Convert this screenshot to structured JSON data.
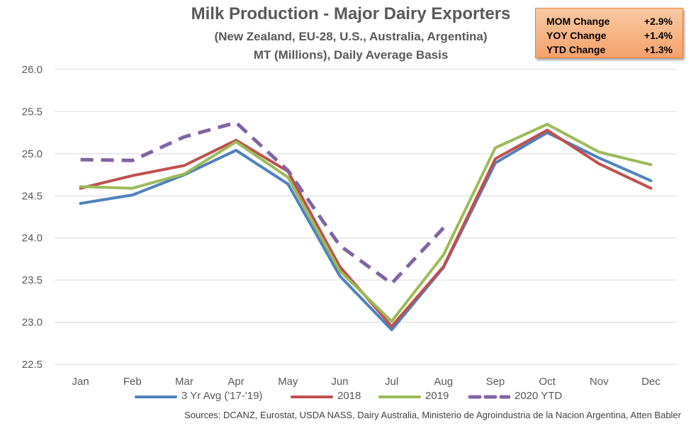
{
  "chart_data": {
    "type": "line",
    "title": "Milk Production - Major Dairy Exporters",
    "subtitle": [
      "(New Zealand, EU-28, U.S., Australia, Argentina)",
      "MT (Millions), Daily Average Basis"
    ],
    "xlabel": "",
    "ylabel": "",
    "categories": [
      "Jan",
      "Feb",
      "Mar",
      "Apr",
      "May",
      "Jun",
      "Jul",
      "Aug",
      "Sep",
      "Oct",
      "Nov",
      "Dec"
    ],
    "ylim": [
      22.5,
      26.0
    ],
    "yticks": [
      "22.5",
      "23.0",
      "23.5",
      "24.0",
      "24.5",
      "25.0",
      "25.5",
      "26.0"
    ],
    "grid": true,
    "legend_position": "bottom",
    "series": [
      {
        "name": "3 Yr Avg ('17-'19)",
        "color": "#4f81bd",
        "dashed": false,
        "values": [
          24.41,
          24.51,
          24.75,
          25.04,
          24.64,
          23.55,
          22.91,
          23.65,
          24.89,
          25.25,
          24.95,
          24.68
        ]
      },
      {
        "name": "2018",
        "color": "#c0504d",
        "dashed": false,
        "values": [
          24.59,
          24.74,
          24.86,
          25.16,
          24.79,
          23.66,
          22.95,
          23.66,
          24.94,
          25.28,
          24.88,
          24.59
        ]
      },
      {
        "name": "2019",
        "color": "#9bbb59",
        "dashed": false,
        "values": [
          24.61,
          24.59,
          24.76,
          25.14,
          24.72,
          23.61,
          23.01,
          23.8,
          25.07,
          25.35,
          25.02,
          24.87
        ]
      },
      {
        "name": "2020 YTD",
        "color": "#8064a2",
        "dashed": true,
        "values": [
          24.93,
          24.92,
          25.2,
          25.37,
          24.8,
          23.91,
          23.46,
          24.12,
          null,
          null,
          null,
          null
        ]
      }
    ]
  },
  "change_box": {
    "rows": [
      {
        "label": "MOM Change",
        "value": "+2.9%"
      },
      {
        "label": "YOY Change",
        "value": "+1.4%"
      },
      {
        "label": "YTD Change",
        "value": "+1.3%"
      }
    ]
  },
  "source": "Sources: DCANZ, Eurostat, USDA NASS, Dairy Australia, Ministerio de Agroindustria de la Nacion Argentina, Atten Babler"
}
